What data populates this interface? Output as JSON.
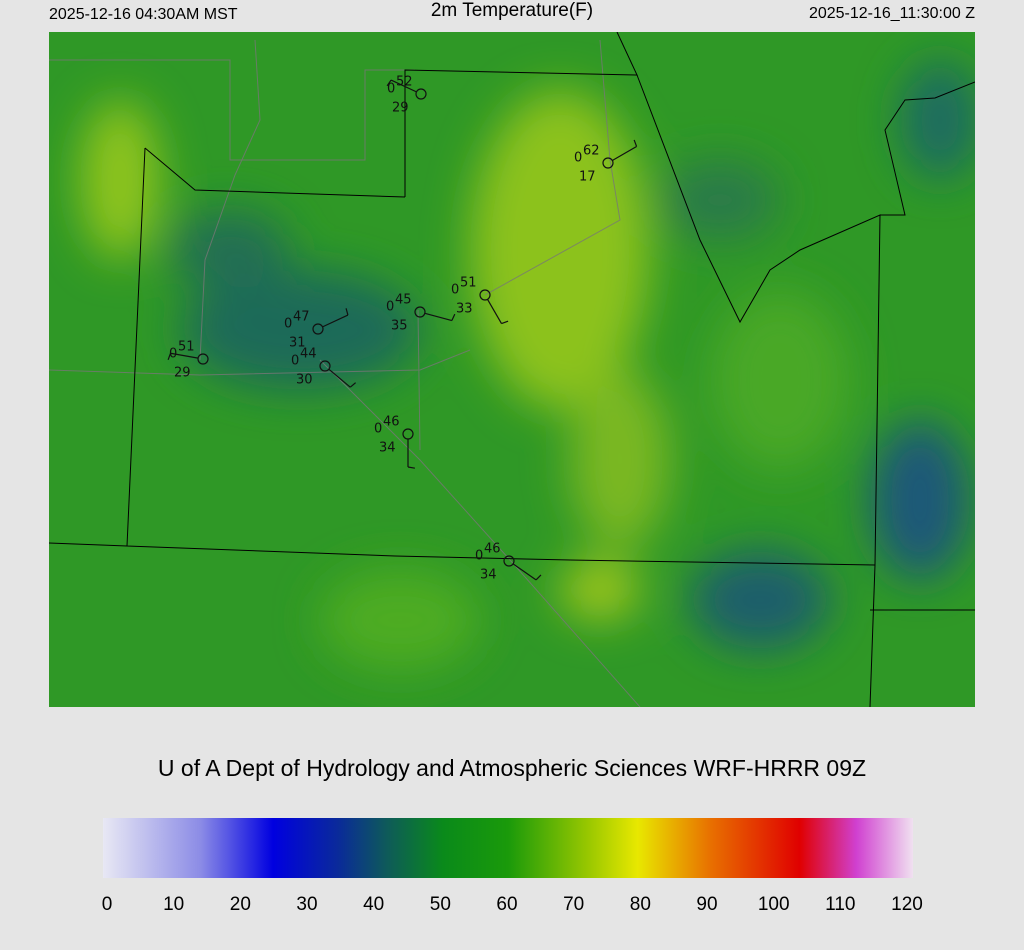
{
  "header": {
    "left": "2025-12-16 04:30AM MST",
    "title": "2m Temperature(F)",
    "right": "2025-12-16_11:30:00 Z"
  },
  "credit": "U of A Dept of Hydrology and Atmospheric Sciences WRF-HRRR 09Z",
  "stations": [
    {
      "temperature": 52,
      "visibility": 0,
      "dewpoint": 29
    },
    {
      "temperature": 62,
      "visibility": 0,
      "dewpoint": 17
    },
    {
      "temperature": 51,
      "visibility": 0,
      "dewpoint": 33
    },
    {
      "temperature": 45,
      "visibility": 0,
      "dewpoint": 35
    },
    {
      "temperature": 47,
      "visibility": 0,
      "dewpoint": 31
    },
    {
      "temperature": 51,
      "visibility": 0,
      "dewpoint": 29
    },
    {
      "temperature": 44,
      "visibility": 0,
      "dewpoint": 30
    },
    {
      "temperature": 46,
      "visibility": 0,
      "dewpoint": 34
    },
    {
      "temperature": 46,
      "visibility": 0,
      "dewpoint": 34
    }
  ],
  "colorbar": {
    "ticks": [
      0,
      10,
      20,
      30,
      40,
      50,
      60,
      70,
      80,
      90,
      100,
      110,
      120
    ]
  }
}
